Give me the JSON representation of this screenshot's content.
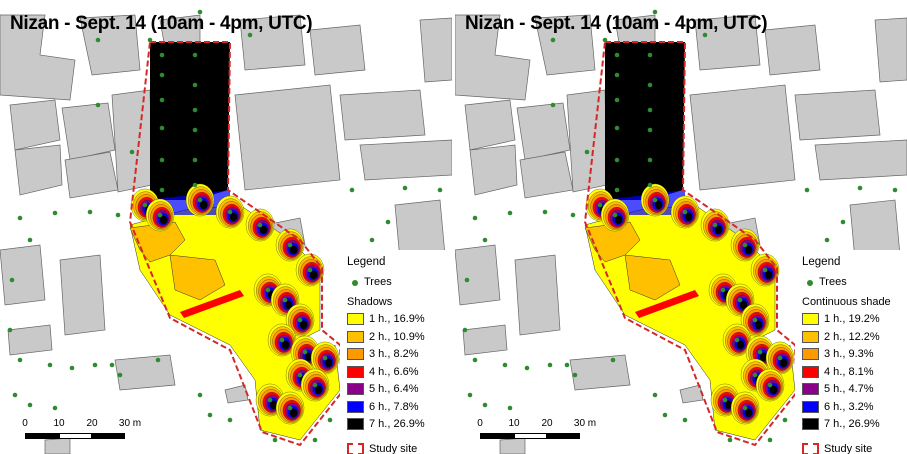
{
  "colors": {
    "building_fill": "#c9c9c9",
    "tree": "#2e8b2e",
    "study_site_border": "#d62728",
    "shade_1h": "#ffff00",
    "shade_2h": "#ffc000",
    "shade_3h": "#ff9900",
    "shade_4h": "#ff0000",
    "shade_5h": "#8b008b",
    "shade_6h": "#0000ff",
    "shade_7h": "#000000"
  },
  "panels": [
    {
      "id": "left",
      "title": "Nizan - Sept. 14 (10am - 4pm, UTC)",
      "legend": {
        "title": "Legend",
        "trees_label": "Trees",
        "category_title": "Shadows",
        "items": [
          {
            "label": "1 h., 16.9%",
            "hours": 1,
            "percent": 16.9,
            "color": "#ffff00"
          },
          {
            "label": "2 h., 10.9%",
            "hours": 2,
            "percent": 10.9,
            "color": "#ffc000"
          },
          {
            "label": "3 h., 8.2%",
            "hours": 3,
            "percent": 8.2,
            "color": "#ff9900"
          },
          {
            "label": "4 h., 6.6%",
            "hours": 4,
            "percent": 6.6,
            "color": "#ff0000"
          },
          {
            "label": "5 h., 6.4%",
            "hours": 5,
            "percent": 6.4,
            "color": "#8b008b"
          },
          {
            "label": "6 h., 7.8%",
            "hours": 6,
            "percent": 7.8,
            "color": "#0000ff"
          },
          {
            "label": "7 h., 26.9%",
            "hours": 7,
            "percent": 26.9,
            "color": "#000000"
          }
        ],
        "study_site_label": "Study site"
      },
      "scalebar": {
        "labels": [
          "0",
          "10",
          "20",
          "30 m"
        ]
      }
    },
    {
      "id": "right",
      "title": "Nizan - Sept. 14 (10am - 4pm, UTC)",
      "legend": {
        "title": "Legend",
        "trees_label": "Trees",
        "category_title": "Continuous shade",
        "items": [
          {
            "label": "1 h., 19.2%",
            "hours": 1,
            "percent": 19.2,
            "color": "#ffff00"
          },
          {
            "label": "2 h., 12.2%",
            "hours": 2,
            "percent": 12.2,
            "color": "#ffc000"
          },
          {
            "label": "3 h., 9.3%",
            "hours": 3,
            "percent": 9.3,
            "color": "#ff9900"
          },
          {
            "label": "4 h., 8.1%",
            "hours": 4,
            "percent": 8.1,
            "color": "#ff0000"
          },
          {
            "label": "5 h., 4.7%",
            "hours": 5,
            "percent": 4.7,
            "color": "#8b008b"
          },
          {
            "label": "6 h., 3.2%",
            "hours": 6,
            "percent": 3.2,
            "color": "#0000ff"
          },
          {
            "label": "7 h., 26.9%",
            "hours": 7,
            "percent": 26.9,
            "color": "#000000"
          }
        ],
        "study_site_label": "Study site"
      },
      "scalebar": {
        "labels": [
          "0",
          "10",
          "20",
          "30 m"
        ]
      }
    }
  ]
}
